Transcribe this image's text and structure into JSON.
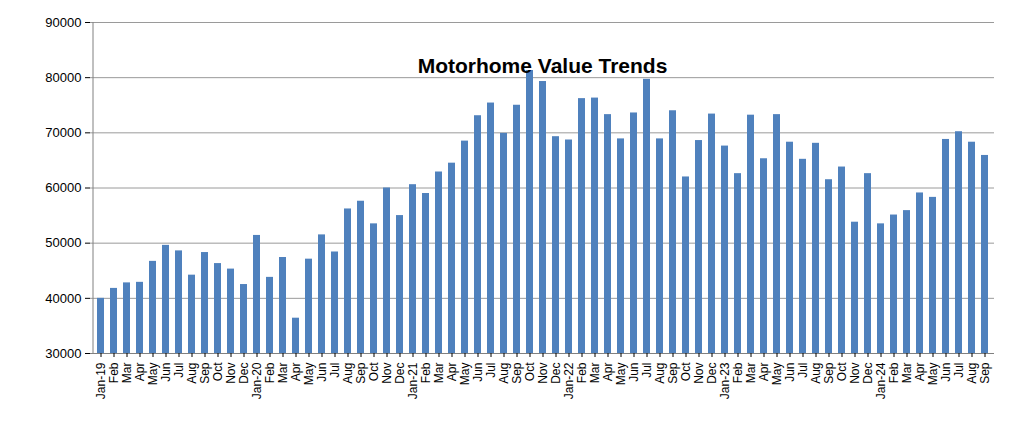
{
  "chart_data": {
    "type": "bar",
    "title": "Motorhome Value Trends",
    "categories": [
      "Jan-19",
      "Feb",
      "Mar",
      "Apr",
      "May",
      "Jun",
      "Jul",
      "Aug",
      "Sep",
      "Oct",
      "Nov",
      "Dec",
      "Jan-20",
      "Feb",
      "Mar",
      "Apr",
      "May",
      "Jun",
      "Jul",
      "Aug",
      "Sep",
      "Oct",
      "Nov",
      "Dec",
      "Jan-21",
      "Feb",
      "Mar",
      "Apr",
      "May",
      "Jun",
      "Jul",
      "Aug",
      "Sep",
      "Oct",
      "Nov",
      "Dec",
      "Jan-22",
      "Feb",
      "Mar",
      "Apr",
      "May",
      "Jun",
      "Jul",
      "Aug",
      "Sep",
      "Oct",
      "Nov",
      "Dec",
      "Jan-23",
      "Feb",
      "Mar",
      "Apr",
      "May",
      "Jun",
      "Jul",
      "Aug",
      "Sep",
      "Oct",
      "Nov",
      "Dec",
      "Jan-24",
      "Feb",
      "Mar",
      "Apr",
      "May",
      "Jun",
      "Jul",
      "Aug",
      "Sep"
    ],
    "values": [
      40000,
      41800,
      42800,
      42900,
      46700,
      49600,
      48600,
      44200,
      48300,
      46300,
      45300,
      42500,
      51400,
      43800,
      47400,
      36400,
      47100,
      51500,
      48400,
      56200,
      57600,
      53500,
      60000,
      55000,
      60600,
      59000,
      62900,
      64500,
      68500,
      73100,
      75400,
      69900,
      75000,
      81300,
      79300,
      69300,
      68700,
      76200,
      76300,
      73300,
      68900,
      73600,
      79700,
      68900,
      74000,
      62000,
      68600,
      73400,
      67600,
      62600,
      73200,
      65300,
      73300,
      68300,
      65200,
      68100,
      61500,
      63800,
      53800,
      62600,
      53500,
      55100,
      55900,
      59100,
      58300,
      68800,
      70200,
      68300,
      65900
    ],
    "color": "#4f81bd",
    "ylim": [
      30000,
      90000
    ],
    "yticks": [
      30000,
      40000,
      50000,
      60000,
      70000,
      80000,
      90000
    ],
    "grid": true
  }
}
